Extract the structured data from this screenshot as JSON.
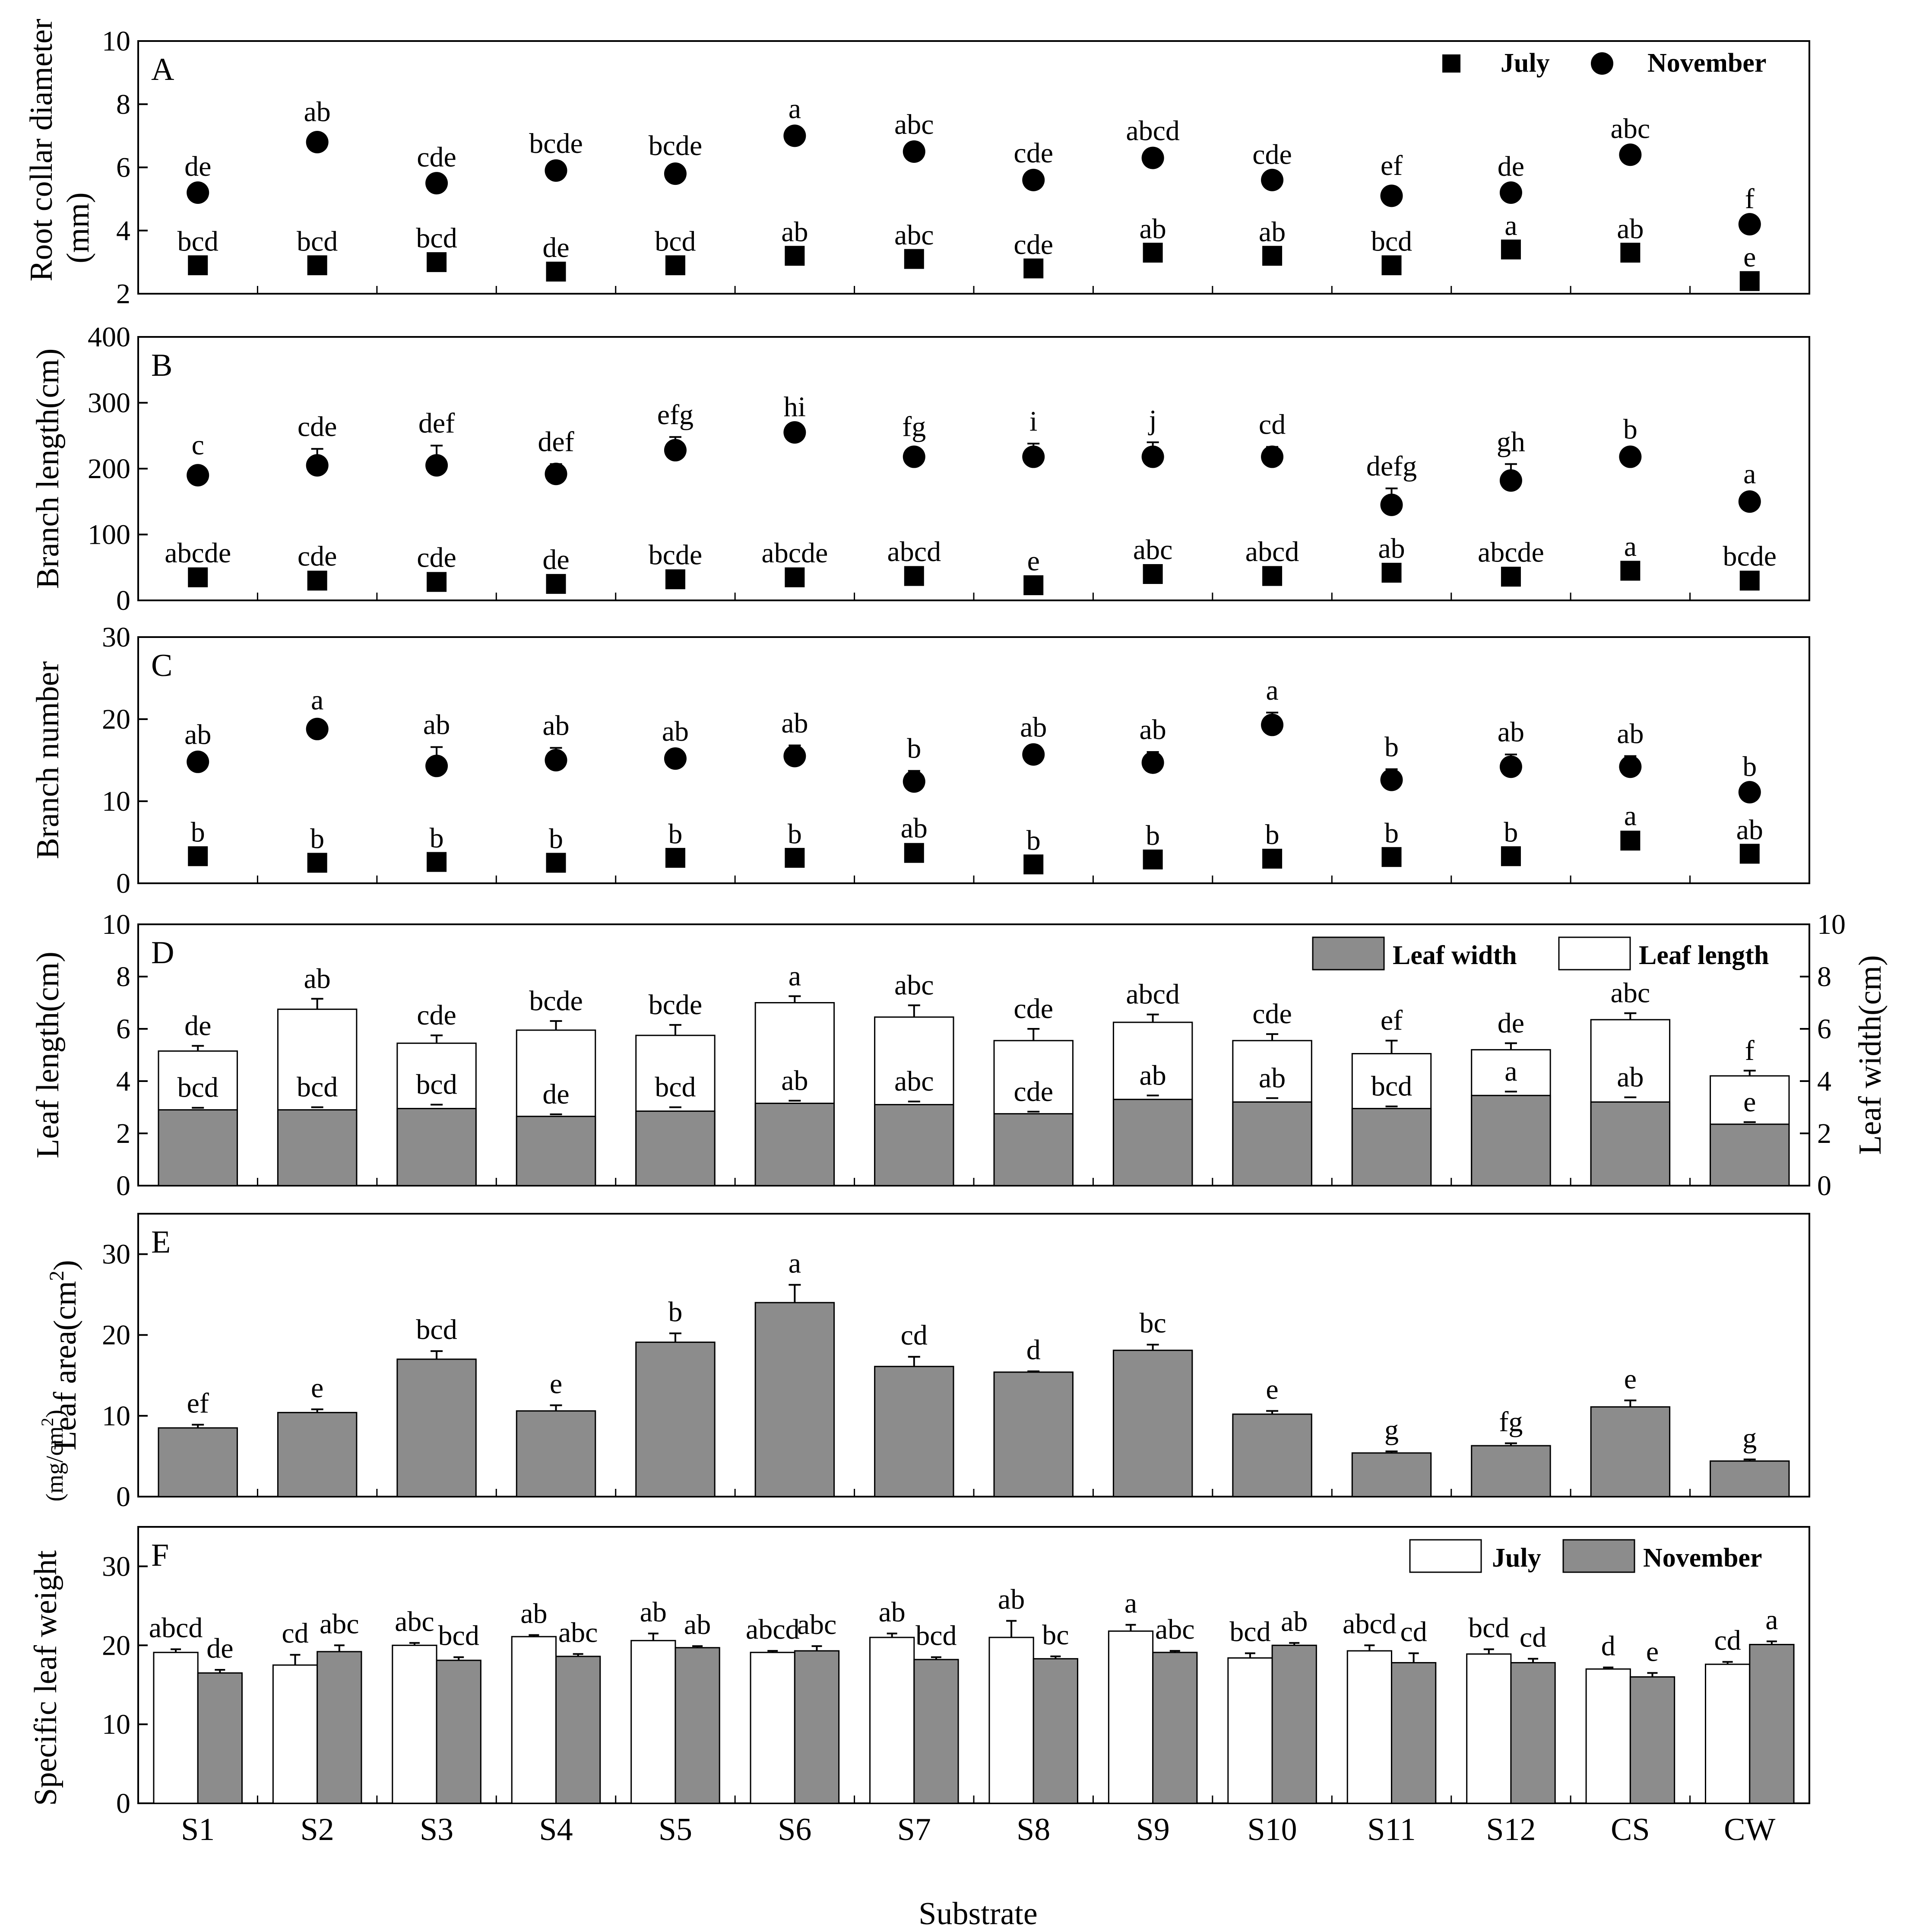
{
  "xlabel": "Substrate",
  "categories": [
    "S1",
    "S2",
    "S3",
    "S4",
    "S5",
    "S6",
    "S7",
    "S8",
    "S9",
    "S10",
    "S11",
    "S12",
    "CS",
    "CW"
  ],
  "colors": {
    "axis": "#000000",
    "dark_bar": "#8c8c8c",
    "light_bar": "#ffffff",
    "marker": "#000000"
  },
  "chart_data": [
    {
      "id": "A",
      "type": "scatter",
      "panel_letter": "A",
      "ylabel": "Root collar diameter (mm)",
      "ylim": [
        2,
        10
      ],
      "yticks": [
        2,
        4,
        6,
        8,
        10
      ],
      "legend": {
        "placement": "top-right",
        "entries": [
          {
            "label": "July",
            "marker": "square"
          },
          {
            "label": "November",
            "marker": "circle"
          }
        ]
      },
      "series": [
        {
          "name": "July",
          "marker": "square",
          "values": [
            2.9,
            2.9,
            3.0,
            2.7,
            2.9,
            3.2,
            3.1,
            2.8,
            3.3,
            3.2,
            2.9,
            3.4,
            3.3,
            2.4
          ],
          "errors": [
            0.05,
            0.05,
            0.05,
            0.05,
            0.05,
            0.05,
            0.05,
            0.05,
            0.05,
            0.05,
            0.05,
            0.05,
            0.05,
            0.05
          ],
          "letters": [
            "bcd",
            "bcd",
            "bcd",
            "de",
            "bcd",
            "ab",
            "abc",
            "cde",
            "ab",
            "ab",
            "bcd",
            "a",
            "ab",
            "e"
          ]
        },
        {
          "name": "November",
          "marker": "circle",
          "values": [
            5.2,
            6.8,
            5.5,
            5.9,
            5.8,
            7.0,
            6.5,
            5.6,
            6.3,
            5.6,
            5.1,
            5.2,
            6.4,
            4.2
          ],
          "errors": [
            0.12,
            0.25,
            0.12,
            0.15,
            0.18,
            0.15,
            0.15,
            0.15,
            0.15,
            0.1,
            0.25,
            0.12,
            0.12,
            0.1
          ],
          "letters": [
            "de",
            "ab",
            "cde",
            "bcde",
            "bcde",
            "a",
            "abc",
            "cde",
            "abcd",
            "cde",
            "ef",
            "de",
            "abc",
            "f"
          ]
        }
      ]
    },
    {
      "id": "B",
      "type": "scatter",
      "panel_letter": "B",
      "ylabel": "Branch length(cm)",
      "ylim": [
        0,
        400
      ],
      "yticks": [
        0,
        100,
        200,
        300,
        400
      ],
      "series": [
        {
          "name": "July",
          "marker": "square",
          "values": [
            35,
            30,
            28,
            25,
            32,
            35,
            37,
            23,
            40,
            37,
            42,
            36,
            45,
            30
          ],
          "errors": [
            3,
            3,
            3,
            3,
            3,
            3,
            3,
            3,
            3,
            3,
            3,
            3,
            3,
            3
          ],
          "letters": [
            "abcde",
            "cde",
            "cde",
            "de",
            "bcde",
            "abcde",
            "abcd",
            "e",
            "abc",
            "abcd",
            "ab",
            "abcde",
            "a",
            "bcde"
          ]
        },
        {
          "name": "November",
          "marker": "circle",
          "values": [
            190,
            205,
            205,
            192,
            228,
            255,
            218,
            218,
            218,
            218,
            145,
            182,
            218,
            150
          ],
          "errors": [
            12,
            25,
            30,
            15,
            20,
            5,
            12,
            20,
            22,
            15,
            25,
            25,
            8,
            8
          ],
          "letters": [
            "c",
            "cde",
            "def",
            "def",
            "efg",
            "hi",
            "fg",
            "i",
            "j",
            "cd",
            "defg",
            "gh",
            "b",
            "a"
          ]
        }
      ]
    },
    {
      "id": "C",
      "type": "scatter",
      "panel_letter": "C",
      "ylabel": "Branch number",
      "ylim": [
        0,
        30
      ],
      "yticks": [
        0,
        10,
        20,
        30
      ],
      "series": [
        {
          "name": "July",
          "marker": "square",
          "values": [
            3.3,
            2.5,
            2.6,
            2.5,
            3.1,
            3.1,
            3.7,
            2.3,
            2.9,
            3.0,
            3.2,
            3.3,
            5.2,
            3.6
          ],
          "errors": [
            0.2,
            0.2,
            0.2,
            0.2,
            0.2,
            0.2,
            0.3,
            0.2,
            0.2,
            0.2,
            0.2,
            0.2,
            0.3,
            0.2
          ],
          "letters": [
            "b",
            "b",
            "b",
            "b",
            "b",
            "b",
            "ab",
            "b",
            "b",
            "b",
            "b",
            "b",
            "a",
            "ab"
          ]
        },
        {
          "name": "November",
          "marker": "circle",
          "values": [
            14.8,
            18.8,
            14.3,
            15.0,
            15.2,
            15.5,
            12.4,
            15.7,
            14.7,
            19.3,
            12.6,
            14.2,
            14.2,
            11.1
          ],
          "errors": [
            0.6,
            0.8,
            2.3,
            1.5,
            0.6,
            1.3,
            1.3,
            0.6,
            1.3,
            1.5,
            1.3,
            1.5,
            1.3,
            0.4
          ],
          "letters": [
            "ab",
            "a",
            "ab",
            "ab",
            "ab",
            "ab",
            "b",
            "ab",
            "ab",
            "a",
            "b",
            "ab",
            "ab",
            "b"
          ]
        }
      ]
    },
    {
      "id": "D",
      "type": "bar",
      "panel_letter": "D",
      "ylabel": "Leaf length(cm)",
      "y2label": "Leaf width(cm)",
      "ylim": [
        0,
        10
      ],
      "yticks": [
        0,
        2,
        4,
        6,
        8,
        10
      ],
      "legend": {
        "placement": "top-right",
        "entries": [
          {
            "label": "Leaf width",
            "fill": "dark"
          },
          {
            "label": "Leaf length",
            "fill": "light"
          }
        ]
      },
      "series": [
        {
          "name": "Leaf width",
          "fill": "dark",
          "values": [
            2.9,
            2.9,
            2.95,
            2.65,
            2.85,
            3.15,
            3.1,
            2.75,
            3.3,
            3.2,
            2.95,
            3.45,
            3.2,
            2.35
          ],
          "errors": [
            0.08,
            0.1,
            0.15,
            0.08,
            0.15,
            0.1,
            0.12,
            0.08,
            0.15,
            0.15,
            0.08,
            0.15,
            0.18,
            0.08
          ],
          "letters": [
            "bcd",
            "bcd",
            "bcd",
            "de",
            "bcd",
            "ab",
            "abc",
            "cde",
            "ab",
            "ab",
            "bcd",
            "a",
            "ab",
            "e"
          ]
        },
        {
          "name": "Leaf length",
          "fill": "light",
          "values": [
            5.15,
            6.75,
            5.45,
            5.95,
            5.75,
            7.0,
            6.45,
            5.55,
            6.25,
            5.55,
            5.05,
            5.2,
            6.35,
            4.2
          ],
          "errors": [
            0.2,
            0.4,
            0.3,
            0.35,
            0.4,
            0.25,
            0.45,
            0.45,
            0.3,
            0.25,
            0.5,
            0.25,
            0.25,
            0.2
          ],
          "letters": [
            "de",
            "ab",
            "cde",
            "bcde",
            "bcde",
            "a",
            "abc",
            "cde",
            "abcd",
            "cde",
            "ef",
            "de",
            "abc",
            "f"
          ]
        }
      ]
    },
    {
      "id": "E",
      "type": "bar",
      "panel_letter": "E",
      "ylabel": "Leaf area(cm",
      "ylim": [
        0,
        35
      ],
      "yticks": [
        0,
        10,
        20,
        30
      ],
      "series": [
        {
          "name": "Leaf area",
          "fill": "dark",
          "values": [
            8.5,
            10.4,
            17.0,
            10.6,
            19.1,
            24.0,
            16.1,
            15.4,
            18.1,
            10.2,
            5.4,
            6.3,
            11.1,
            4.4
          ],
          "errors": [
            0.4,
            0.4,
            1.0,
            0.7,
            1.1,
            2.2,
            1.2,
            0.1,
            0.7,
            0.4,
            0.2,
            0.3,
            0.8,
            0.2
          ],
          "letters": [
            "ef",
            "e",
            "bcd",
            "e",
            "b",
            "a",
            "cd",
            "d",
            "bc",
            "e",
            "g",
            "fg",
            "e",
            "g"
          ]
        }
      ]
    },
    {
      "id": "F",
      "type": "bar",
      "panel_letter": "F",
      "ylabel": "Specific leaf weight",
      "ylabel_unit": "(mg/cm",
      "ylim": [
        0,
        35
      ],
      "yticks": [
        0,
        10,
        20,
        30
      ],
      "legend": {
        "placement": "top-right",
        "entries": [
          {
            "label": "July",
            "fill": "light"
          },
          {
            "label": "November",
            "fill": "dark"
          }
        ]
      },
      "series": [
        {
          "name": "July",
          "fill": "light",
          "values": [
            19.1,
            17.5,
            20.0,
            21.1,
            20.6,
            19.1,
            21.0,
            21.0,
            21.8,
            18.4,
            19.3,
            18.9,
            17.0,
            17.6
          ],
          "errors": [
            0.4,
            1.3,
            0.3,
            0.2,
            0.9,
            0.2,
            0.5,
            2.1,
            0.8,
            0.6,
            0.7,
            0.6,
            0.2,
            0.3
          ],
          "letters": [
            "abcd",
            "cd",
            "abc",
            "ab",
            "ab",
            "abcd",
            "ab",
            "ab",
            "a",
            "bcd",
            "abcd",
            "bcd",
            "d",
            "cd"
          ]
        },
        {
          "name": "November",
          "fill": "dark",
          "values": [
            16.5,
            19.2,
            18.1,
            18.6,
            19.7,
            19.3,
            18.2,
            18.3,
            19.1,
            20.0,
            17.8,
            17.8,
            16.0,
            20.1
          ],
          "errors": [
            0.4,
            0.8,
            0.4,
            0.3,
            0.2,
            0.6,
            0.3,
            0.3,
            0.2,
            0.3,
            1.2,
            0.5,
            0.5,
            0.4
          ],
          "letters": [
            "de",
            "abc",
            "bcd",
            "abc",
            "ab",
            "abc",
            "bcd",
            "bc",
            "abc",
            "ab",
            "cd",
            "cd",
            "e",
            "a"
          ]
        }
      ]
    }
  ]
}
